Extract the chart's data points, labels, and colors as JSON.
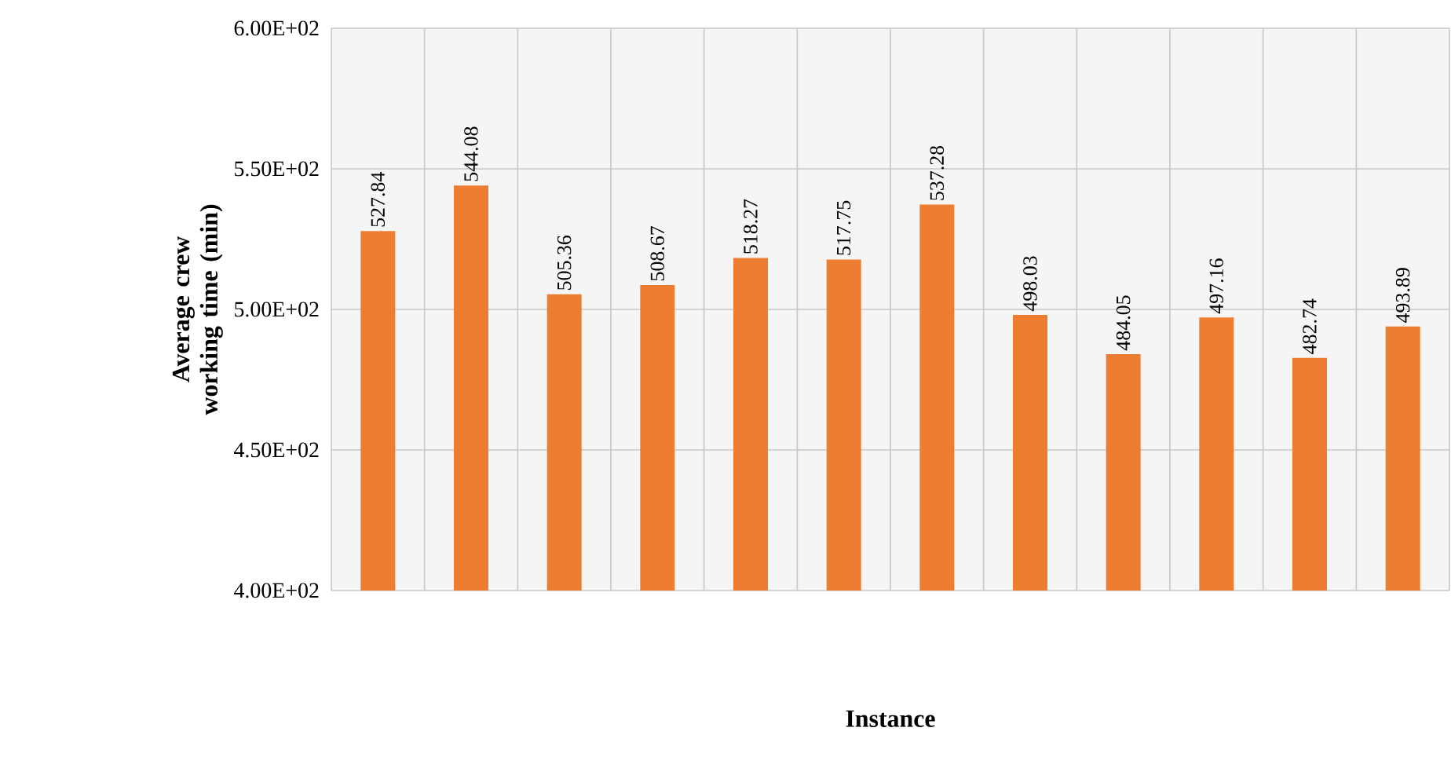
{
  "chart_data": {
    "type": "bar",
    "xlabel": "Instance",
    "ylabel": "Average crew working time (min)",
    "categories": [
      null,
      null,
      null,
      null,
      null,
      null,
      null,
      null,
      null,
      null,
      null,
      null
    ],
    "values": [
      527.84,
      544.08,
      505.36,
      508.67,
      518.27,
      517.75,
      537.28,
      498.03,
      484.05,
      497.16,
      482.74,
      493.89
    ],
    "value_labels": [
      "527.84",
      "544.08",
      "505.36",
      "508.67",
      "518.27",
      "517.75",
      "537.28",
      "498.03",
      "484.05",
      "497.16",
      "482.74",
      "493.89"
    ],
    "color": "#ed7d31",
    "ylim": [
      400,
      600
    ],
    "yticks": [
      {
        "value": 400,
        "label": "4.00E+02"
      },
      {
        "value": 450,
        "label": "4.50E+02"
      },
      {
        "value": 500,
        "label": "5.00E+02"
      },
      {
        "value": 550,
        "label": "5.50E+02"
      },
      {
        "value": 600,
        "label": "6.00E+02"
      }
    ],
    "grid": true
  }
}
